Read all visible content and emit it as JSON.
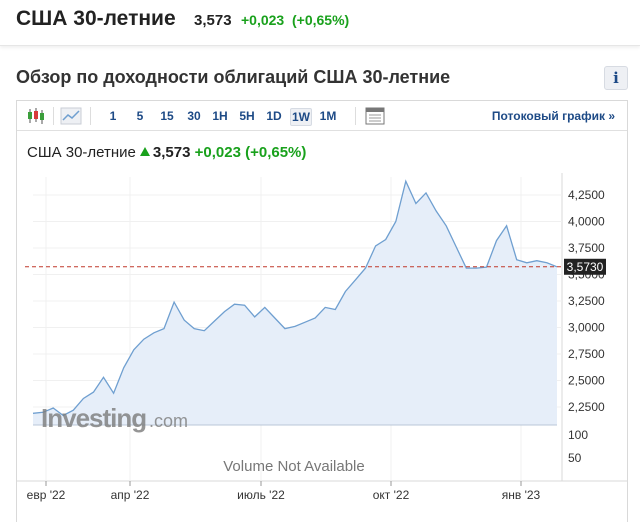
{
  "top": {
    "title": "США 30-летние",
    "price": "3,573",
    "change": "+0,023",
    "change_pct": "(+0,65%)"
  },
  "section_title": "Обзор по доходности облигаций США 30-летние",
  "info_label": "i",
  "toolbar": {
    "timeframes": [
      "1",
      "5",
      "15",
      "30",
      "1H",
      "5H",
      "1D",
      "1W",
      "1M"
    ],
    "active_timeframe": "1W",
    "stream_label": "Потоковый график",
    "stream_arrow": "»"
  },
  "chart_header": {
    "name": "США 30-летние",
    "price": "3,573",
    "change": "+0,023",
    "change_pct": "(+0,65%)"
  },
  "colors": {
    "accent": "#1d4a86",
    "positive": "#19a11c",
    "line": "#6f9fd0",
    "fill": "#e6eef9",
    "last_badge": "#222222"
  },
  "watermark": {
    "brand": "Investing",
    "suffix": ".com"
  },
  "volume_label": "Volume Not Available",
  "volume_ticks": [
    "100",
    "50"
  ],
  "chart_data": {
    "type": "area",
    "series": [
      {
        "values": [
          2.19,
          2.2,
          2.24,
          2.17,
          2.22,
          2.33,
          2.39,
          2.53,
          2.38,
          2.62,
          2.79,
          2.89,
          2.95,
          2.99,
          3.24,
          3.07,
          2.99,
          2.97,
          3.06,
          3.15,
          3.22,
          3.21,
          3.1,
          3.19,
          3.09,
          2.99,
          3.01,
          3.05,
          3.09,
          3.19,
          3.17,
          3.34,
          3.45,
          3.56,
          3.77,
          3.83,
          4.0,
          4.38,
          4.17,
          4.27,
          4.1,
          3.96,
          3.76,
          3.56,
          3.56,
          3.57,
          3.82,
          3.96,
          3.64,
          3.61,
          3.63,
          3.61,
          3.573
        ]
      }
    ],
    "x_ticks": [
      "евр '22",
      "апр '22",
      "июль '22",
      "окт '22",
      "янв '23"
    ],
    "y_ticks": [
      "4,2500",
      "4,0000",
      "3,7500",
      "3,5000",
      "3,2500",
      "3,0000",
      "2,7500",
      "2,5000",
      "2,2500"
    ],
    "ylim": [
      2.08,
      4.42
    ],
    "last_value_label": "3,5730",
    "grid": true
  }
}
